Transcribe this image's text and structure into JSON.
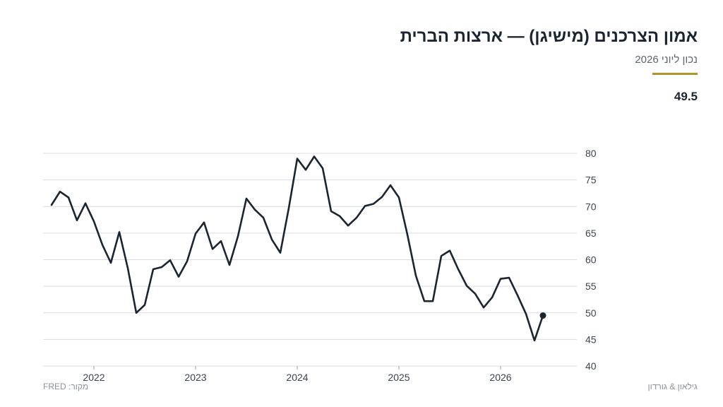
{
  "header": {
    "title": "אמון הצרכנים (מישיגן) — ארצות הברית",
    "subtitle": "נכון ליוני 2026",
    "latest_value": "49.5"
  },
  "footer": {
    "source": "מקור: FRED",
    "credit": "גילאון & גורדון"
  },
  "colors": {
    "line": "#1b2532",
    "accent": "#b0942f",
    "grid": "#d9dde2",
    "axis_text": "#3c4653"
  },
  "chart_data": {
    "type": "line",
    "title": "אמון הצרכנים (מישיגן) — ארצות הברית",
    "xlabel": "",
    "ylabel": "",
    "ylim": [
      40,
      80
    ],
    "yticks": [
      40,
      45,
      50,
      55,
      60,
      65,
      70,
      75,
      80
    ],
    "y_axis_side": "right",
    "xticks": [
      {
        "label": "2022",
        "date": "2022-01"
      },
      {
        "label": "2023",
        "date": "2023-01"
      },
      {
        "label": "2024",
        "date": "2024-01"
      },
      {
        "label": "2025",
        "date": "2025-01"
      },
      {
        "label": "2026",
        "date": "2026-01"
      }
    ],
    "grid": true,
    "legend": "none",
    "series": [
      {
        "x": [
          "2021-08",
          "2021-09",
          "2021-10",
          "2021-11",
          "2021-12",
          "2022-01",
          "2022-02",
          "2022-03",
          "2022-04",
          "2022-05",
          "2022-06",
          "2022-07",
          "2022-08",
          "2022-09",
          "2022-10",
          "2022-11",
          "2022-12",
          "2023-01",
          "2023-02",
          "2023-03",
          "2023-04",
          "2023-05",
          "2023-06",
          "2023-07",
          "2023-08",
          "2023-09",
          "2023-10",
          "2023-11",
          "2023-12",
          "2024-01",
          "2024-02",
          "2024-03",
          "2024-04",
          "2024-05",
          "2024-06",
          "2024-07",
          "2024-08",
          "2024-09",
          "2024-10",
          "2024-11",
          "2024-12",
          "2025-01",
          "2025-02",
          "2025-03",
          "2025-04",
          "2025-05",
          "2025-06",
          "2025-07",
          "2025-08",
          "2025-09",
          "2025-10",
          "2025-11",
          "2025-12",
          "2026-01",
          "2026-02",
          "2026-03",
          "2026-04",
          "2026-05",
          "2026-06"
        ],
        "values": [
          70.3,
          72.8,
          71.7,
          67.4,
          70.6,
          67.2,
          62.8,
          59.4,
          65.2,
          58.4,
          50.0,
          51.5,
          58.2,
          58.6,
          59.9,
          56.8,
          59.7,
          64.9,
          67.0,
          62.0,
          63.5,
          59.0,
          64.4,
          71.5,
          69.4,
          67.9,
          63.8,
          61.3,
          69.7,
          79.0,
          76.9,
          79.4,
          77.2,
          69.1,
          68.2,
          66.4,
          67.9,
          70.1,
          70.5,
          71.8,
          74.0,
          71.7,
          64.7,
          57.0,
          52.2,
          52.2,
          60.7,
          61.7,
          58.2,
          55.1,
          53.6,
          51.0,
          52.9,
          56.4,
          56.6,
          53.3,
          49.8,
          44.8,
          49.5
        ]
      }
    ]
  }
}
